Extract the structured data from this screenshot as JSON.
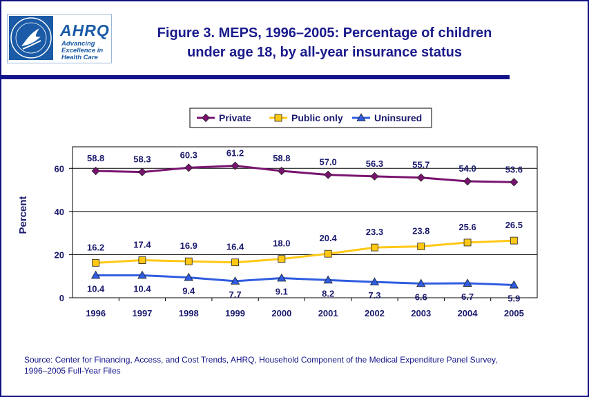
{
  "header": {
    "logo": {
      "brand": "AHRQ",
      "tagline_lines": [
        "Advancing",
        "Excellence in",
        "Health Care"
      ]
    },
    "title_lines": [
      "Figure 3. MEPS, 1996–2005: Percentage of children",
      "under age 18, by all-year insurance status"
    ]
  },
  "source_lines": [
    "Source: Center for Financing, Access, and Cost Trends, AHRQ, Household Component of the Medical Expenditure Panel Survey,",
    "1996–2005 Full-Year Files"
  ],
  "chart_data": {
    "type": "line",
    "title": "Figure 3. MEPS, 1996–2005: Percentage of children under age 18, by all-year insurance status",
    "xlabel": "",
    "ylabel": "Percent",
    "ylim": [
      0,
      70
    ],
    "yticks": [
      0,
      20,
      40,
      60
    ],
    "grid": true,
    "legend_position": "top",
    "categories": [
      "1996",
      "1997",
      "1998",
      "1999",
      "2000",
      "2001",
      "2002",
      "2003",
      "2004",
      "2005"
    ],
    "series": [
      {
        "name": "Private",
        "color": "#7a1370",
        "marker": "diamond",
        "values": [
          58.8,
          58.3,
          60.3,
          61.2,
          58.8,
          57.0,
          56.3,
          55.7,
          54.0,
          53.6
        ],
        "labels": [
          "58.8",
          "58.3",
          "60.3",
          "61.2",
          "58.8",
          "57.0",
          "56.3",
          "55.7",
          "54.0",
          "53.6"
        ]
      },
      {
        "name": "Public only",
        "color": "#ffc814",
        "marker": "square",
        "values": [
          16.2,
          17.4,
          16.9,
          16.4,
          18.0,
          20.4,
          23.3,
          23.8,
          25.6,
          26.5
        ],
        "labels": [
          "16.2",
          "17.4",
          "16.9",
          "16.4",
          "18.0",
          "20.4",
          "23.3",
          "23.8",
          "25.6",
          "26.5"
        ]
      },
      {
        "name": "Uninsured",
        "color": "#2f5ce0",
        "marker": "triangle",
        "values": [
          10.4,
          10.4,
          9.4,
          7.7,
          9.1,
          8.2,
          7.3,
          6.6,
          6.7,
          5.9
        ],
        "labels": [
          "10.4",
          "10.4",
          "9.4",
          "7.7",
          "9.1",
          "8.2",
          "7.3",
          "6.6",
          "6.7",
          "5.9"
        ]
      }
    ]
  }
}
